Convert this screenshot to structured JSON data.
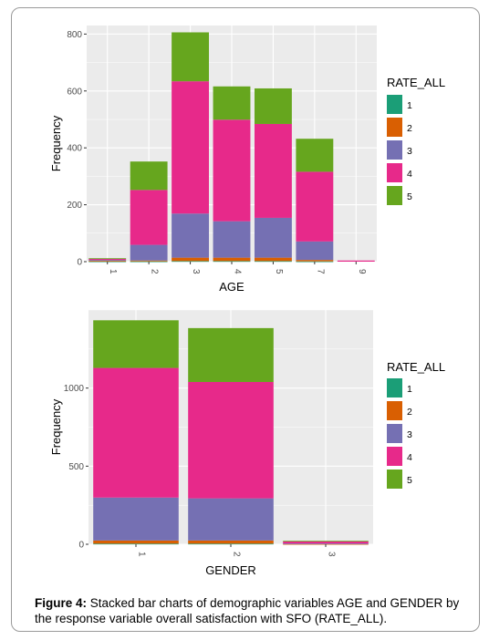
{
  "caption": {
    "label": "Figure 4:",
    "text": " Stacked bar charts of demographic variables AGE and GENDER by the response variable overall satisfaction with SFO (RATE_ALL)."
  },
  "colors": {
    "panel_bg": "#ebebeb",
    "grid": "#ffffff",
    "series": [
      "#1b9e77",
      "#d95f02",
      "#7570b3",
      "#e7298a",
      "#66a61e"
    ]
  },
  "chart_data": [
    {
      "type": "bar",
      "stacked": true,
      "categories": [
        "1",
        "2",
        "3",
        "4",
        "5",
        "7",
        "9"
      ],
      "xlabel": "AGE",
      "ylabel": "Frequency",
      "ylim": [
        0,
        830
      ],
      "yticks": [
        0,
        200,
        400,
        600,
        800
      ],
      "grid": true,
      "legend": {
        "title": "RATE_ALL",
        "position": "right"
      },
      "series": [
        {
          "name": "1",
          "values": [
            1,
            1,
            2,
            2,
            2,
            1,
            0
          ]
        },
        {
          "name": "2",
          "values": [
            2,
            3,
            12,
            12,
            12,
            5,
            0
          ]
        },
        {
          "name": "3",
          "values": [
            3,
            55,
            155,
            128,
            140,
            65,
            0
          ]
        },
        {
          "name": "4",
          "values": [
            4,
            193,
            465,
            357,
            330,
            245,
            4
          ]
        },
        {
          "name": "5",
          "values": [
            2,
            100,
            172,
            117,
            125,
            116,
            0
          ]
        }
      ]
    },
    {
      "type": "bar",
      "stacked": true,
      "categories": [
        "1",
        "2",
        "3"
      ],
      "xlabel": "GENDER",
      "ylabel": "Frequency",
      "ylim": [
        0,
        1500
      ],
      "yticks": [
        0,
        500,
        1000
      ],
      "grid": true,
      "legend": {
        "title": "RATE_ALL",
        "position": "right"
      },
      "series": [
        {
          "name": "1",
          "values": [
            4,
            4,
            0
          ]
        },
        {
          "name": "2",
          "values": [
            20,
            20,
            2
          ]
        },
        {
          "name": "3",
          "values": [
            275,
            270,
            3
          ]
        },
        {
          "name": "4",
          "values": [
            830,
            745,
            13
          ]
        },
        {
          "name": "5",
          "values": [
            305,
            345,
            4
          ]
        }
      ]
    }
  ]
}
